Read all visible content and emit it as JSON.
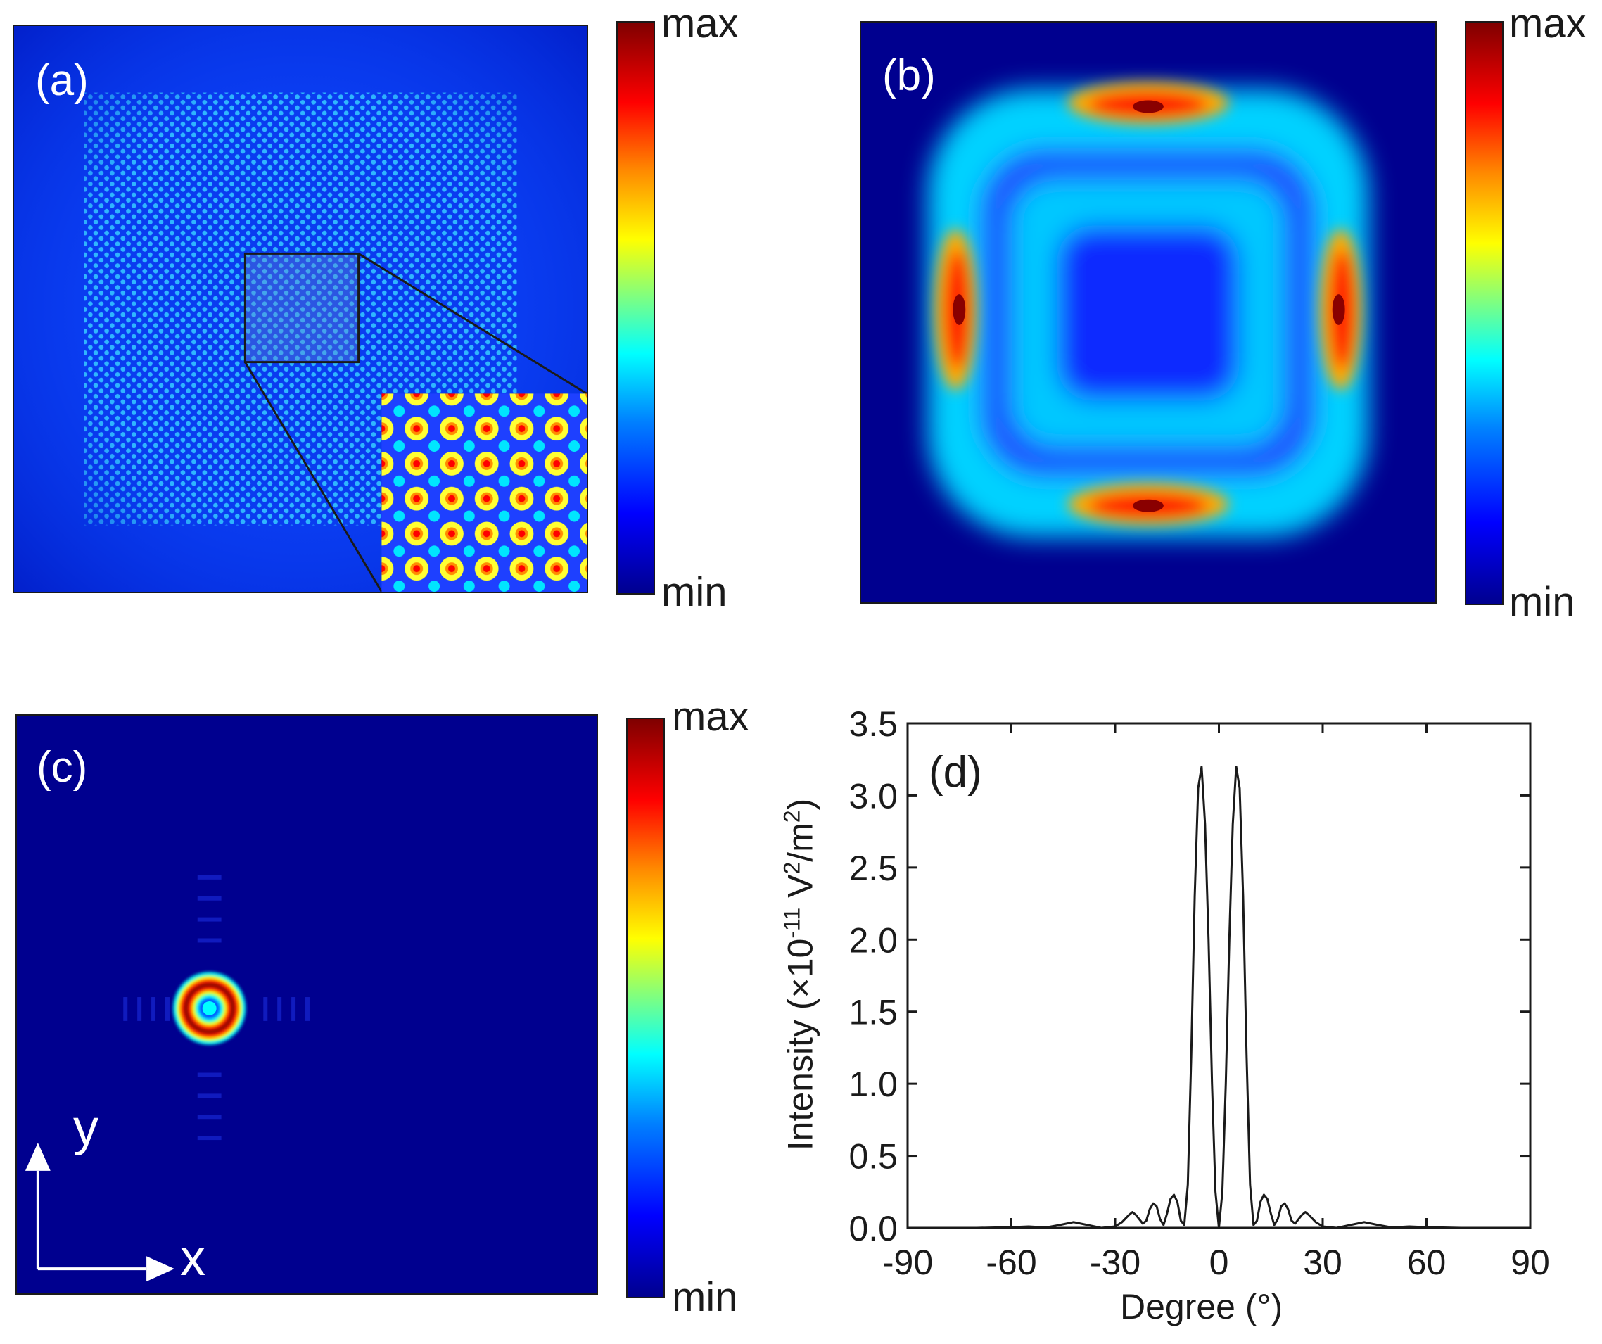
{
  "panels": {
    "a": {
      "label": "(a)"
    },
    "b": {
      "label": "(b)"
    },
    "c": {
      "label": "(c)",
      "axis_x": "x",
      "axis_y": "y"
    },
    "d": {
      "label": "(d)"
    }
  },
  "colorbars": {
    "a": {
      "max": "max",
      "min": "min"
    },
    "b": {
      "max": "max",
      "min": "min"
    },
    "c": {
      "max": "max",
      "min": "min"
    }
  },
  "colors": {
    "deep_blue": "#00008f",
    "blue": "#0000ff",
    "cyan": "#00ffff",
    "yellow": "#ffff00",
    "red": "#ff0000",
    "dark_red": "#7f0000",
    "line": "#1a1a1a"
  },
  "chart_data": {
    "type": "line",
    "title": "",
    "xlabel": "Degree (°)",
    "ylabel": {
      "main": "Intensity (×10",
      "exp": "-11",
      "unit": " V",
      "unit_exp": "2",
      "unit_tail": "/m",
      "unit_tail_exp": "2",
      "close": ")"
    },
    "xlim": [
      -90,
      90
    ],
    "ylim": [
      0,
      3.5
    ],
    "xticks": [
      -90,
      -60,
      -30,
      0,
      30,
      60,
      90
    ],
    "xtick_labels": [
      "-90",
      "-60",
      "-30",
      "0",
      "30",
      "60",
      "90"
    ],
    "yticks": [
      0,
      0.5,
      1.0,
      1.5,
      2.0,
      2.5,
      3.0,
      3.5
    ],
    "ytick_labels": [
      "0.0",
      "0.5",
      "1.0",
      "1.5",
      "2.0",
      "2.5",
      "3.0",
      "3.5"
    ],
    "series": [
      {
        "name": "Intensity",
        "x": [
          -90,
          -70,
          -60,
          -55,
          -50,
          -46,
          -42,
          -38,
          -34,
          -30,
          -28,
          -26,
          -25,
          -24,
          -22,
          -21,
          -20,
          -19,
          -18,
          -17,
          -16,
          -15,
          -14,
          -13,
          -12,
          -11,
          -10,
          -9,
          -8,
          -7,
          -6,
          -5,
          -4,
          -3,
          -2,
          -1,
          0,
          1,
          2,
          3,
          4,
          5,
          6,
          7,
          8,
          9,
          10,
          11,
          12,
          13,
          14,
          15,
          16,
          17,
          18,
          19,
          20,
          21,
          22,
          24,
          25,
          26,
          28,
          30,
          34,
          38,
          42,
          46,
          50,
          55,
          60,
          70,
          90
        ],
        "y": [
          0,
          0,
          0.005,
          0.01,
          0.003,
          0.02,
          0.04,
          0.02,
          0.0,
          0.01,
          0.04,
          0.09,
          0.11,
          0.09,
          0.03,
          0.05,
          0.13,
          0.17,
          0.15,
          0.06,
          0.02,
          0.1,
          0.2,
          0.23,
          0.18,
          0.05,
          0.02,
          0.3,
          1.2,
          2.3,
          3.05,
          3.2,
          2.8,
          2.0,
          1.0,
          0.25,
          0.0,
          0.25,
          1.0,
          2.0,
          2.8,
          3.2,
          3.05,
          2.3,
          1.2,
          0.3,
          0.02,
          0.05,
          0.18,
          0.23,
          0.2,
          0.1,
          0.02,
          0.06,
          0.15,
          0.17,
          0.13,
          0.05,
          0.03,
          0.09,
          0.11,
          0.09,
          0.04,
          0.01,
          0.0,
          0.02,
          0.04,
          0.02,
          0.003,
          0.01,
          0.005,
          0,
          0
        ]
      }
    ]
  }
}
